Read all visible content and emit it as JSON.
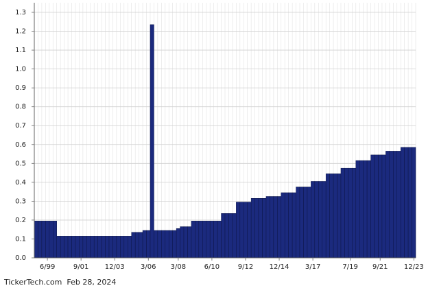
{
  "chart_data": {
    "type": "bar",
    "categories": [
      null,
      null,
      null,
      "6/99",
      null,
      null,
      null,
      null,
      null,
      null,
      null,
      null,
      "9/01",
      null,
      null,
      null,
      null,
      null,
      null,
      null,
      null,
      "12/03",
      null,
      null,
      null,
      null,
      null,
      null,
      null,
      null,
      "3/06",
      null,
      null,
      null,
      null,
      null,
      null,
      null,
      "3/08",
      null,
      null,
      null,
      null,
      null,
      null,
      null,
      null,
      "6/10",
      null,
      null,
      null,
      null,
      null,
      null,
      null,
      null,
      "9/12",
      null,
      null,
      null,
      null,
      null,
      null,
      null,
      null,
      "12/14",
      null,
      null,
      null,
      null,
      null,
      null,
      null,
      null,
      "3/17",
      null,
      null,
      null,
      null,
      null,
      null,
      null,
      null,
      null,
      "7/19",
      null,
      null,
      null,
      null,
      null,
      null,
      null,
      "9/21",
      null,
      null,
      null,
      null,
      null,
      null,
      null,
      null,
      "12/23"
    ],
    "values": [
      0.195,
      0.195,
      0.195,
      0.195,
      0.195,
      0.195,
      0.115,
      0.115,
      0.115,
      0.115,
      0.115,
      0.115,
      0.115,
      0.115,
      0.115,
      0.115,
      0.115,
      0.115,
      0.115,
      0.115,
      0.115,
      0.115,
      0.115,
      0.115,
      0.115,
      0.115,
      0.135,
      0.135,
      0.135,
      0.145,
      0.145,
      1.235,
      0.145,
      0.145,
      0.145,
      0.145,
      0.145,
      0.145,
      0.155,
      0.165,
      0.165,
      0.165,
      0.195,
      0.195,
      0.195,
      0.195,
      0.195,
      0.195,
      0.195,
      0.195,
      0.235,
      0.235,
      0.235,
      0.235,
      0.295,
      0.295,
      0.295,
      0.295,
      0.315,
      0.315,
      0.315,
      0.315,
      0.325,
      0.325,
      0.325,
      0.325,
      0.345,
      0.345,
      0.345,
      0.345,
      0.375,
      0.375,
      0.375,
      0.375,
      0.405,
      0.405,
      0.405,
      0.405,
      0.445,
      0.445,
      0.445,
      0.445,
      0.475,
      0.475,
      0.475,
      0.475,
      0.515,
      0.515,
      0.515,
      0.515,
      0.545,
      0.545,
      0.545,
      0.545,
      0.565,
      0.565,
      0.565,
      0.565,
      0.585,
      0.585,
      0.585,
      0.585
    ],
    "color": "#1b2a7e",
    "ylim": [
      0,
      1.3
    ],
    "yticks": [
      {
        "value": 0,
        "label": "0.0"
      },
      0.1,
      0.2,
      0.3,
      0.4,
      0.5,
      0.6,
      0.7,
      0.8,
      0.9,
      {
        "value": 1,
        "label": "1.0"
      },
      1.1,
      1.2,
      1.3
    ],
    "grid": true,
    "source": "TickerTech.com  Feb 28, 2024"
  }
}
